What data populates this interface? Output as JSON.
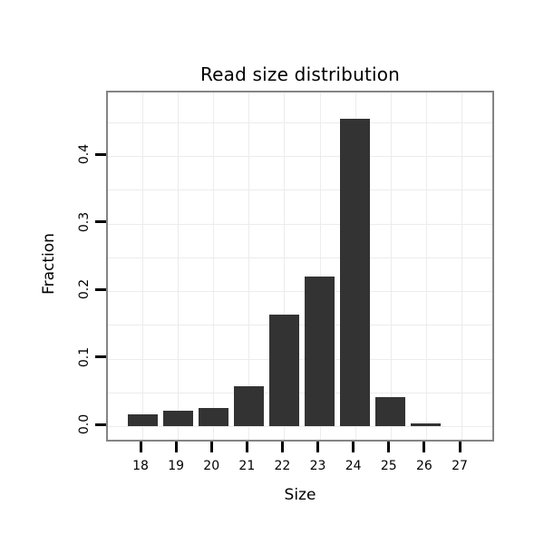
{
  "chart_data": {
    "type": "bar",
    "title": "Read size distribution",
    "xlabel": "Size",
    "ylabel": "Fraction",
    "categories": [
      "18",
      "19",
      "20",
      "21",
      "22",
      "23",
      "24",
      "25",
      "26",
      "27"
    ],
    "values": [
      0.018,
      0.023,
      0.027,
      0.059,
      0.165,
      0.222,
      0.455,
      0.043,
      0.004,
      0.0
    ],
    "ylim": [
      0,
      0.47
    ],
    "yticks": [
      0.0,
      0.1,
      0.2,
      0.3,
      0.4
    ],
    "ytick_labels": [
      "0.0",
      "0.1",
      "0.2",
      "0.3",
      "0.4"
    ],
    "grid": true,
    "grid_step": 0.05,
    "legend": "none",
    "colors": {
      "bar": "#333333",
      "panel_border": "#848484",
      "grid": "#ececec",
      "background": "#ffffff",
      "tick": "#000000",
      "text": "#000000"
    }
  }
}
